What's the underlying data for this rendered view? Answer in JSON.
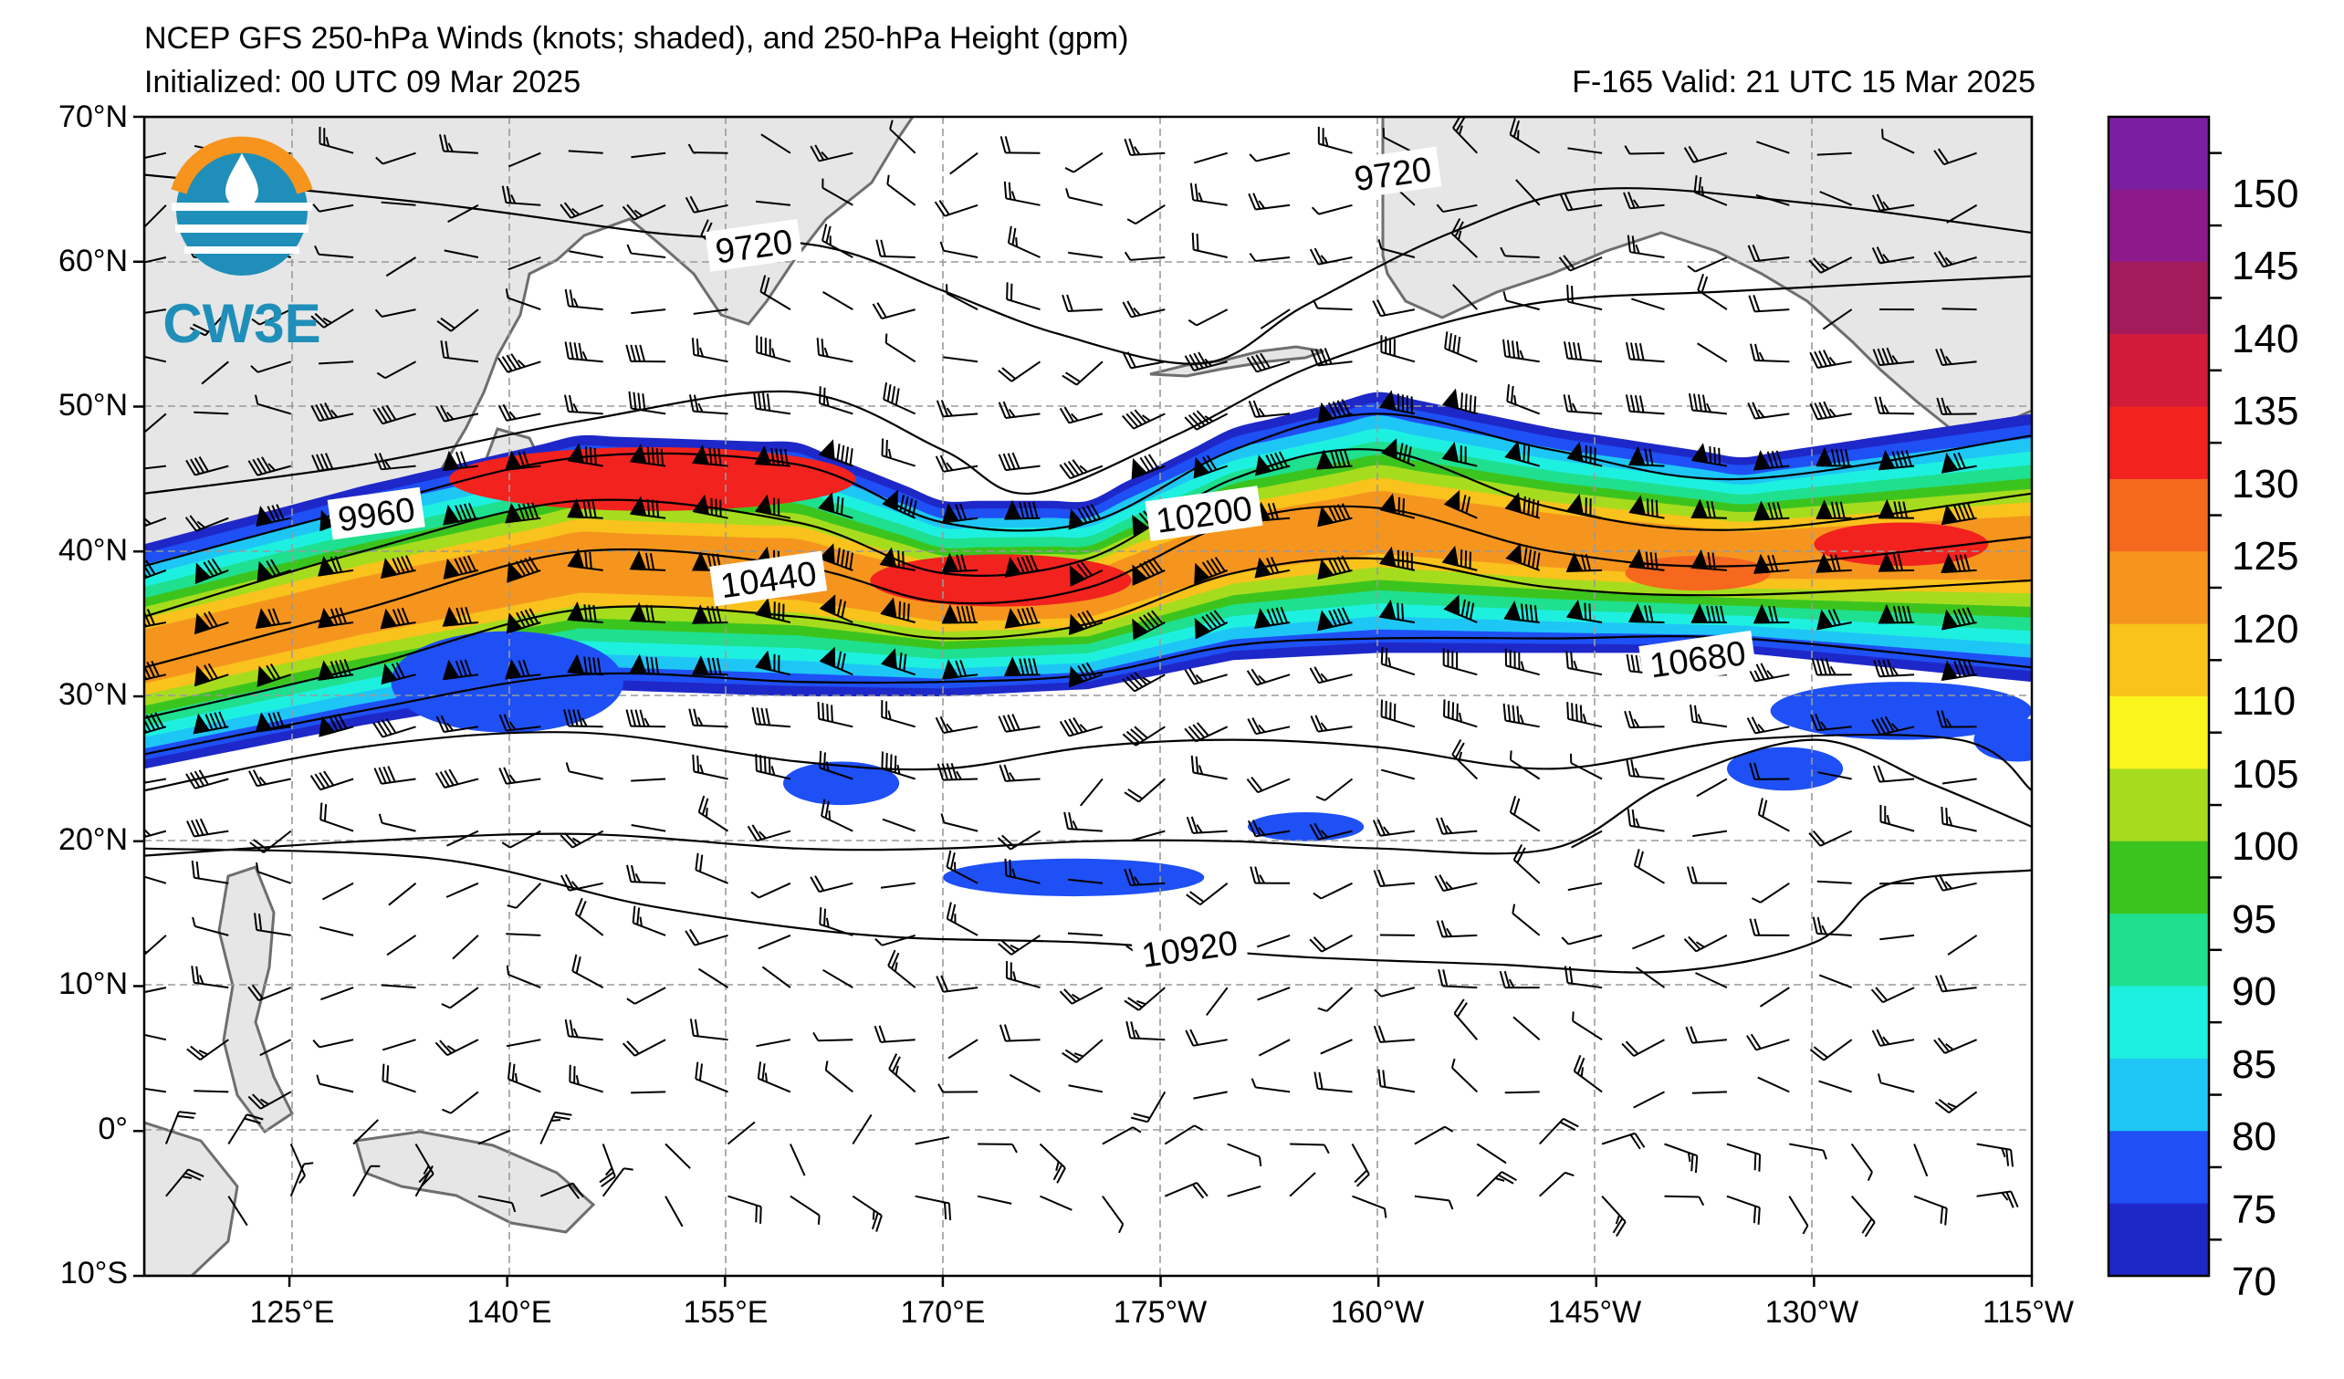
{
  "header": {
    "title": "NCEP GFS 250-hPa Winds (knots; shaded), and 250-hPa Height (gpm)",
    "initialized": "Initialized: 00 UTC 09 Mar 2025",
    "valid": "F-165  Valid: 21 UTC 15 Mar 2025"
  },
  "logo": {
    "text": "CW3E",
    "colors": {
      "ring": "#f7941d",
      "waves": "#1f8fb9"
    }
  },
  "axes": {
    "lat_labels": [
      "70°N",
      "60°N",
      "50°N",
      "40°N",
      "30°N",
      "20°N",
      "10°N",
      "0°",
      "10°S"
    ],
    "lon_labels": [
      "125°E",
      "140°E",
      "155°E",
      "170°E",
      "175°W",
      "160°W",
      "145°W",
      "130°W",
      "115°W"
    ],
    "lat_range": [
      -10,
      70
    ],
    "lon_range_east": [
      115,
      245
    ]
  },
  "colorbar": {
    "ticks": [
      "150",
      "145",
      "140",
      "135",
      "130",
      "125",
      "120",
      "110",
      "105",
      "100",
      "95",
      "90",
      "85",
      "80",
      "75",
      "70"
    ],
    "colors": [
      "#7a1fa2",
      "#8c1a8a",
      "#a51a5a",
      "#d21a3a",
      "#f2221e",
      "#f5681e",
      "#f5951e",
      "#f9c21c",
      "#fbf51e",
      "#a6dc1e",
      "#3cc41e",
      "#1ee08f",
      "#1ef0e0",
      "#1ec6f5",
      "#1e50f5",
      "#1e28c8"
    ],
    "min": 70,
    "max": 155
  },
  "contours": {
    "labels": [
      {
        "text": "9720",
        "lon": 157,
        "lat": 61
      },
      {
        "text": "9720",
        "lon": 201,
        "lat": 66
      },
      {
        "text": "9960",
        "lon": 131,
        "lat": 42.5
      },
      {
        "text": "10200",
        "lon": 188,
        "lat": 42.5
      },
      {
        "text": "10440",
        "lon": 158,
        "lat": 38
      },
      {
        "text": "10680",
        "lon": 222,
        "lat": 32.5
      },
      {
        "text": "10920",
        "lon": 187,
        "lat": 12.5
      }
    ],
    "lines": [
      {
        "value": 9720,
        "points": [
          [
            115,
            66
          ],
          [
            135,
            64
          ],
          [
            150,
            62
          ],
          [
            162,
            61
          ],
          [
            170,
            58
          ],
          [
            178,
            55
          ],
          [
            188,
            53
          ],
          [
            195,
            57
          ],
          [
            205,
            62
          ],
          [
            215,
            65
          ],
          [
            230,
            64
          ],
          [
            245,
            62
          ]
        ]
      },
      {
        "value": 9960,
        "points": [
          [
            115,
            44
          ],
          [
            130,
            46
          ],
          [
            145,
            49
          ],
          [
            160,
            51
          ],
          [
            170,
            47
          ],
          [
            176,
            44
          ],
          [
            186,
            48
          ],
          [
            196,
            53
          ],
          [
            210,
            57
          ],
          [
            225,
            58
          ],
          [
            245,
            59
          ]
        ]
      },
      {
        "value": 10080,
        "points": [
          [
            115,
            39
          ],
          [
            130,
            43
          ],
          [
            145,
            46.5
          ],
          [
            160,
            46
          ],
          [
            170,
            42
          ],
          [
            180,
            42
          ],
          [
            190,
            47
          ],
          [
            200,
            49.5
          ],
          [
            212,
            47
          ],
          [
            225,
            45
          ],
          [
            245,
            48
          ]
        ]
      },
      {
        "value": 10200,
        "points": [
          [
            115,
            35.5
          ],
          [
            130,
            40
          ],
          [
            145,
            43.5
          ],
          [
            160,
            42
          ],
          [
            170,
            38.5
          ],
          [
            180,
            39.5
          ],
          [
            190,
            45
          ],
          [
            200,
            47
          ],
          [
            212,
            43
          ],
          [
            225,
            41.5
          ],
          [
            245,
            44
          ]
        ]
      },
      {
        "value": 10320,
        "points": [
          [
            115,
            32
          ],
          [
            130,
            36
          ],
          [
            145,
            40
          ],
          [
            160,
            39
          ],
          [
            170,
            36.5
          ],
          [
            180,
            37.5
          ],
          [
            190,
            42
          ],
          [
            200,
            43
          ],
          [
            212,
            40
          ],
          [
            225,
            39
          ],
          [
            245,
            41
          ]
        ]
      },
      {
        "value": 10440,
        "points": [
          [
            115,
            28.5
          ],
          [
            130,
            32
          ],
          [
            145,
            36
          ],
          [
            160,
            35.5
          ],
          [
            170,
            34
          ],
          [
            180,
            35
          ],
          [
            190,
            38.5
          ],
          [
            200,
            39.5
          ],
          [
            212,
            37.5
          ],
          [
            225,
            37
          ],
          [
            245,
            38
          ]
        ]
      },
      {
        "value": 10560,
        "points": [
          [
            115,
            26
          ],
          [
            130,
            29
          ],
          [
            145,
            31.5
          ],
          [
            160,
            31
          ],
          [
            170,
            31
          ],
          [
            180,
            31.5
          ],
          [
            190,
            33.5
          ],
          [
            200,
            34
          ],
          [
            212,
            34
          ],
          [
            225,
            34
          ],
          [
            245,
            32
          ]
        ]
      },
      {
        "value": 10680,
        "points": [
          [
            115,
            23.5
          ],
          [
            130,
            26.5
          ],
          [
            145,
            27.5
          ],
          [
            160,
            25.5
          ],
          [
            170,
            25
          ],
          [
            180,
            26.5
          ],
          [
            190,
            27
          ],
          [
            200,
            26.5
          ],
          [
            212,
            25
          ],
          [
            225,
            27
          ],
          [
            240,
            27
          ],
          [
            245,
            23.5
          ]
        ]
      },
      {
        "value": 10800,
        "points": [
          [
            115,
            19
          ],
          [
            130,
            20
          ],
          [
            145,
            20.5
          ],
          [
            160,
            19.5
          ],
          [
            170,
            19.5
          ],
          [
            180,
            20
          ],
          [
            190,
            20
          ],
          [
            200,
            19.5
          ],
          [
            212,
            19.5
          ],
          [
            220,
            24
          ],
          [
            230,
            27
          ],
          [
            238,
            24
          ],
          [
            245,
            21
          ]
        ]
      },
      {
        "value": 10920,
        "points": [
          [
            115,
            19.5
          ],
          [
            135,
            18.8
          ],
          [
            150,
            15.5
          ],
          [
            165,
            13.5
          ],
          [
            180,
            13
          ],
          [
            195,
            12
          ],
          [
            208,
            11.5
          ],
          [
            220,
            11
          ],
          [
            230,
            13
          ],
          [
            235,
            17
          ],
          [
            245,
            18
          ]
        ]
      }
    ]
  }
}
